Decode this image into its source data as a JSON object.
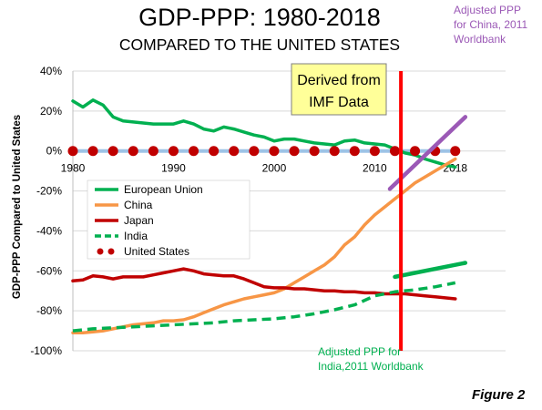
{
  "chart_data": {
    "type": "line",
    "title": "GDP-PPP: 1980-2018",
    "subtitle": "COMPARED TO THE UNITED STATES",
    "xlabel": "",
    "ylabel": "GDP-PPP Compared to United States",
    "figure_label": "Figure 2",
    "x_ticks": [
      1980,
      1990,
      2000,
      2010,
      2018
    ],
    "xlim": [
      1980,
      2018
    ],
    "y_ticks": [
      {
        "value": 40,
        "label": "40%"
      },
      {
        "value": 20,
        "label": "20%"
      },
      {
        "value": 0,
        "label": "0%"
      },
      {
        "value": -20,
        "label": "-20%"
      },
      {
        "value": -40,
        "label": "-40%"
      },
      {
        "value": -60,
        "label": "-60%"
      },
      {
        "value": -80,
        "label": "-80%"
      },
      {
        "value": -100,
        "label": "-100%"
      }
    ],
    "ylim": [
      -100,
      40
    ],
    "grid": "horizontal",
    "legend": "bottom-left",
    "series": [
      {
        "name": "European Union",
        "color": "#00b050",
        "style": "solid",
        "x": [
          1980,
          1981,
          1982,
          1983,
          1984,
          1985,
          1986,
          1987,
          1988,
          1989,
          1990,
          1991,
          1992,
          1993,
          1994,
          1995,
          1996,
          1997,
          1998,
          1999,
          2000,
          2001,
          2002,
          2003,
          2004,
          2005,
          2006,
          2007,
          2008,
          2009,
          2010,
          2011,
          2012,
          2013,
          2014,
          2015,
          2016,
          2017,
          2018
        ],
        "values": [
          25,
          22,
          25.5,
          23,
          17,
          15,
          14.5,
          14,
          13.5,
          13.5,
          13.5,
          15,
          13.5,
          11,
          10,
          12,
          11,
          9.5,
          8,
          7,
          5,
          6,
          6,
          5,
          4,
          3.5,
          3,
          5,
          5.5,
          4,
          3.5,
          3,
          1,
          -1,
          -2,
          -4,
          -5.5,
          -7,
          -8
        ]
      },
      {
        "name": "China",
        "color": "#f79646",
        "style": "solid",
        "x": [
          1980,
          1981,
          1982,
          1983,
          1984,
          1985,
          1986,
          1987,
          1988,
          1989,
          1990,
          1991,
          1992,
          1993,
          1994,
          1995,
          1996,
          1997,
          1998,
          1999,
          2000,
          2001,
          2002,
          2003,
          2004,
          2005,
          2006,
          2007,
          2008,
          2009,
          2010,
          2011,
          2012,
          2013,
          2014,
          2015,
          2016,
          2017,
          2018
        ],
        "values": [
          -91,
          -91,
          -90.5,
          -90,
          -89,
          -88,
          -87,
          -86.5,
          -86,
          -85,
          -85,
          -84.5,
          -83,
          -81,
          -79,
          -77,
          -75.5,
          -74,
          -73,
          -72,
          -71,
          -69,
          -66,
          -63,
          -60,
          -57,
          -53,
          -47,
          -43,
          -37,
          -32,
          -28,
          -24,
          -20,
          -16,
          -13,
          -10,
          -7,
          -4
        ]
      },
      {
        "name": "Japan",
        "color": "#c00000",
        "style": "solid",
        "x": [
          1980,
          1981,
          1982,
          1983,
          1984,
          1985,
          1986,
          1987,
          1988,
          1989,
          1990,
          1991,
          1992,
          1993,
          1994,
          1995,
          1996,
          1997,
          1998,
          1999,
          2000,
          2001,
          2002,
          2003,
          2004,
          2005,
          2006,
          2007,
          2008,
          2009,
          2010,
          2011,
          2012,
          2013,
          2014,
          2015,
          2016,
          2017,
          2018
        ],
        "values": [
          -65,
          -64.5,
          -62.5,
          -63,
          -64,
          -63,
          -63,
          -63,
          -62,
          -61,
          -60,
          -59,
          -60,
          -61.5,
          -62,
          -62.5,
          -62.5,
          -64,
          -66,
          -68,
          -68.5,
          -68.5,
          -69,
          -69,
          -69.5,
          -70,
          -70,
          -70.5,
          -70.5,
          -71,
          -71,
          -71.5,
          -71.5,
          -71.5,
          -72,
          -72.5,
          -73,
          -73.5,
          -74
        ]
      },
      {
        "name": "India",
        "color": "#00b050",
        "style": "dashed",
        "x": [
          1980,
          1982,
          1984,
          1986,
          1988,
          1990,
          1992,
          1994,
          1996,
          1998,
          2000,
          2002,
          2004,
          2006,
          2008,
          2010,
          2012,
          2014,
          2016,
          2018
        ],
        "values": [
          -90,
          -89,
          -88.5,
          -88,
          -87.5,
          -87,
          -86.5,
          -86,
          -85,
          -84.5,
          -84,
          -83,
          -81.5,
          -79.5,
          -77,
          -72.5,
          -70.5,
          -69.5,
          -68,
          -66
        ]
      },
      {
        "name": "United States",
        "color": "#c00000",
        "style": "dots",
        "x": [
          1980,
          1982,
          1984,
          1986,
          1988,
          1990,
          1992,
          1994,
          1996,
          1998,
          2000,
          2002,
          2004,
          2006,
          2008,
          2010,
          2012,
          2014,
          2016,
          2018
        ],
        "values": [
          0,
          0,
          0,
          0,
          0,
          0,
          0,
          0,
          0,
          0,
          0,
          0,
          0,
          0,
          0,
          0,
          0,
          0,
          0,
          0
        ]
      }
    ],
    "adjusted_lines": [
      {
        "label": "Adjusted PPP for China, 2011 Worldbank",
        "color": "#9b59b6",
        "x": [
          2011.5,
          2019
        ],
        "values": [
          -19,
          17
        ]
      },
      {
        "label": "Adjusted PPP for India,2011 Worldbank",
        "color": "#00b050",
        "x": [
          2012,
          2019
        ],
        "values": [
          -63,
          -56
        ]
      }
    ],
    "reference_line": {
      "x": 2012.6,
      "color": "#ff0000"
    },
    "baseline_color": "#9dc3e6",
    "annotations": {
      "source_box": [
        "Derived from",
        "IMF Data"
      ],
      "china_note": [
        "Adjusted PPP",
        "for China, 2011",
        "Worldbank"
      ],
      "india_note": [
        "Adjusted PPP for",
        "India,2011 Worldbank"
      ]
    }
  }
}
